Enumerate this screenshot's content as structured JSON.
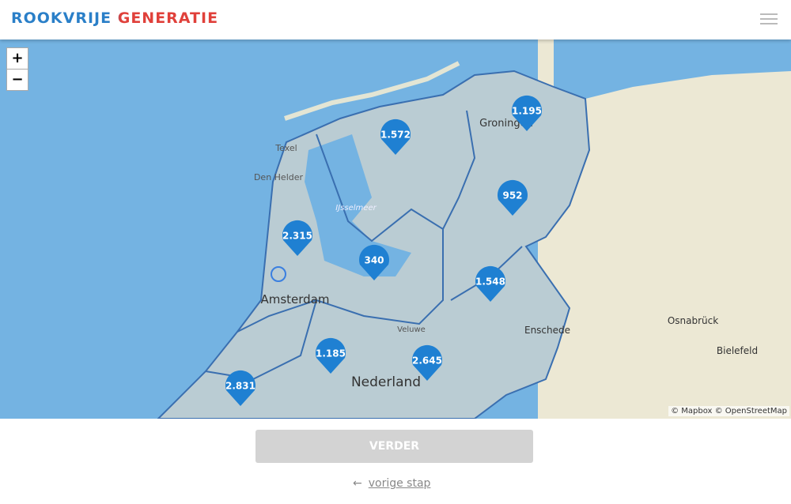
{
  "header": {
    "logo": "ROOKVRIJE GENERATIE"
  },
  "map": {
    "zoom_in": "+",
    "zoom_out": "−",
    "places": [
      "Texel",
      "Den Helder",
      "Amsterdam",
      "Nederland",
      "Groningen",
      "Enschede",
      "Osnabrück",
      "Bielefeld",
      "Veluwe",
      "IJsselmeer"
    ],
    "markers": [
      "1.195",
      "1.572",
      "952",
      "2.315",
      "340",
      "1.548",
      "1.185",
      "2.645",
      "2.831"
    ],
    "attribution": "© Mapbox © OpenStreetMap"
  },
  "footer": {
    "button": "VERDER",
    "back_link": "vorige stap"
  }
}
